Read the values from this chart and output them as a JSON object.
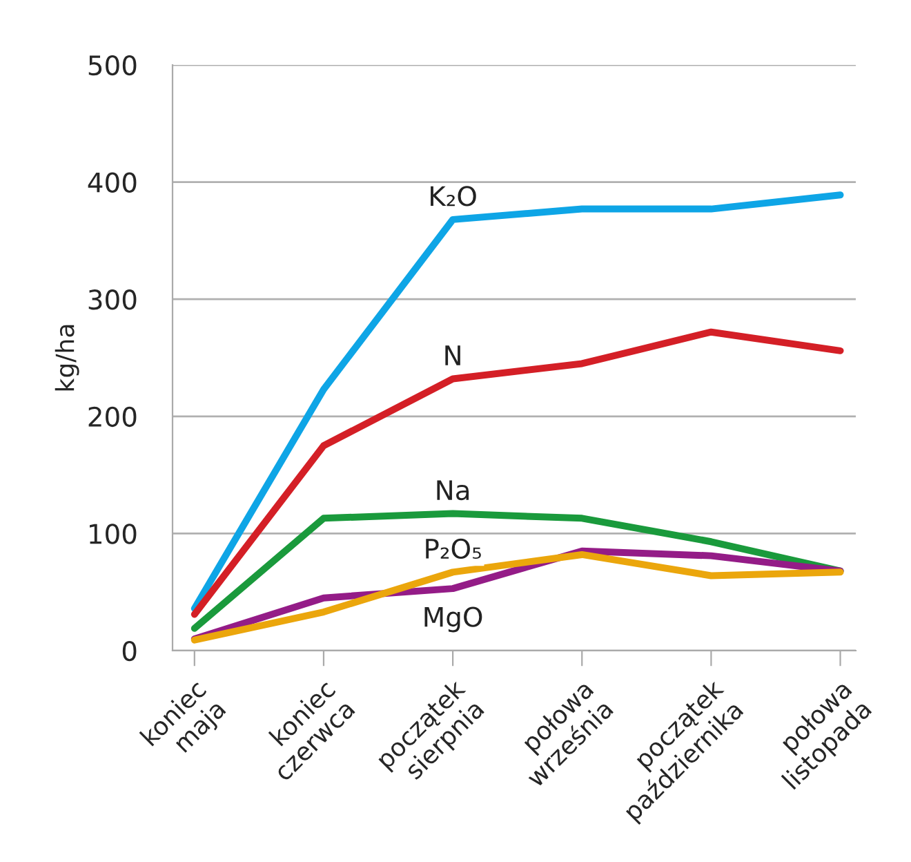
{
  "chart_data": {
    "type": "line",
    "ylabel": "kg/ha",
    "categories": [
      "koniec\nmaja",
      "koniec\nczerwca",
      "początek\nsierpnia",
      "połowa\nwrześnia",
      "początek\npaździernika",
      "połowa\nlistopada"
    ],
    "series": [
      {
        "name": "K₂O",
        "color": "#0ea5e6",
        "values": [
          36,
          223,
          368,
          377,
          377,
          389
        ]
      },
      {
        "name": "N",
        "color": "#d41f26",
        "values": [
          31,
          175,
          232,
          245,
          272,
          256
        ]
      },
      {
        "name": "Na",
        "color": "#1a9a3c",
        "values": [
          19,
          113,
          117,
          113,
          93,
          68
        ]
      },
      {
        "name": "MgO",
        "color": "#941c87",
        "values": [
          10,
          45,
          53,
          85,
          81,
          68
        ]
      },
      {
        "name": "P₂O₅",
        "color": "#eba60c",
        "values": [
          9,
          33,
          67,
          82,
          64,
          67
        ]
      }
    ],
    "ylim": [
      0,
      500
    ],
    "yticks": [
      0,
      100,
      200,
      300,
      400,
      500
    ],
    "grid": "y",
    "legend": false,
    "marker": "none",
    "line_style": "solid"
  }
}
